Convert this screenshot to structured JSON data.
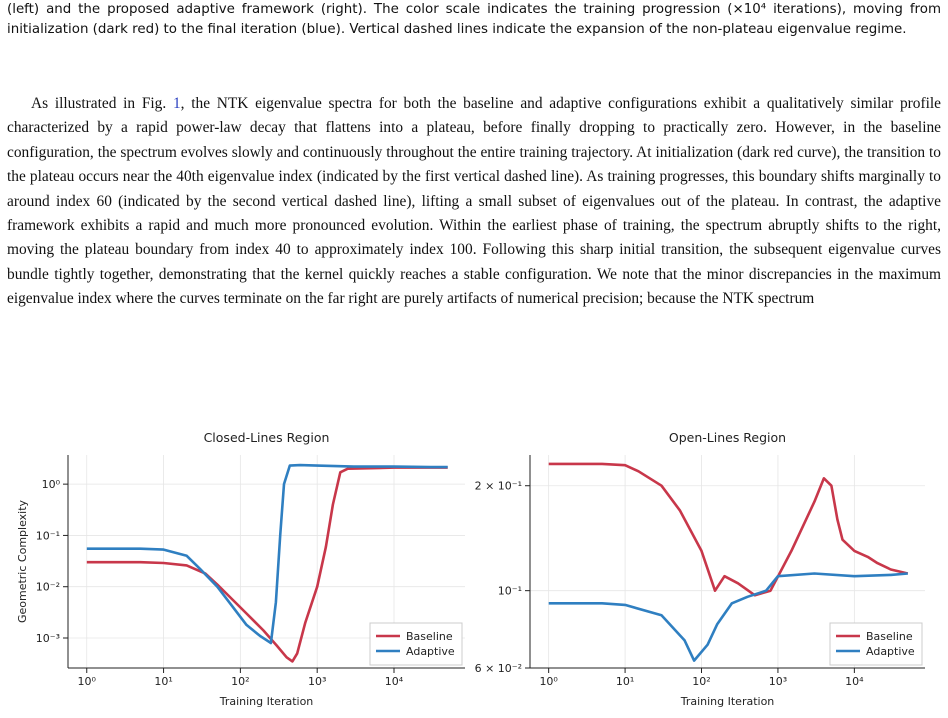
{
  "caption": "(left) and the proposed adaptive framework (right). The color scale indicates the training progression (×10⁴ iterations), moving from initialization (dark red) to the final iteration (blue). Vertical dashed lines indicate the expansion of the non-plateau eigenvalue regime.",
  "paragraph": [
    "As illustrated in Fig. ",
    "1",
    ", the NTK eigenvalue spectra for both the baseline and adaptive configurations exhibit a qualitatively similar profile characterized by a rapid power-law decay that flattens into a plateau, before finally dropping to practically zero. However, in the baseline configuration, the spectrum evolves slowly and continuously throughout the entire training trajectory. At initialization (dark red curve), the transition to the plateau occurs near the 40th eigenvalue index (indicated by the first vertical dashed line). As training progresses, this boundary shifts marginally to around index 60 (indicated by the second vertical dashed line), lifting a small subset of eigenvalues out of the plateau. In contrast, the adaptive framework exhibits a rapid and much more pronounced evolution. Within the earliest phase of training, the spectrum abruptly shifts to the right, moving the plateau boundary from index 40 to approximately index 100. Following this sharp initial transition, the subsequent eigenvalue curves bundle tightly together, demonstrating that the kernel quickly reaches a stable configuration. We note that the minor discrepancies in the maximum eigenvalue index where the curves terminate on the far right are purely artifacts of numerical precision; because the NTK spectrum"
  ],
  "chart_data": [
    {
      "type": "line",
      "title": "Closed-Lines Region",
      "x_label": "Training Iteration",
      "y_label": "Geometric Complexity",
      "xlog": true,
      "ylog": true,
      "xlim": [
        0.57,
        84000
      ],
      "ylim": [
        0.00026,
        3.7
      ],
      "xticks": [
        {
          "value": 1,
          "label": "10⁰"
        },
        {
          "value": 10,
          "label": "10¹"
        },
        {
          "value": 100,
          "label": "10²"
        },
        {
          "value": 1000,
          "label": "10³"
        },
        {
          "value": 10000,
          "label": "10⁴"
        }
      ],
      "yticks": [
        {
          "value": 0.001,
          "label": "10⁻³"
        },
        {
          "value": 0.01,
          "label": "10⁻²"
        },
        {
          "value": 0.1,
          "label": "10⁻¹"
        },
        {
          "value": 1,
          "label": "10⁰"
        }
      ],
      "grid": true,
      "legend": "lower right",
      "series": [
        {
          "name": "Baseline",
          "color": "#c8374a",
          "x": [
            1,
            5,
            10,
            20,
            35,
            50,
            80,
            120,
            200,
            300,
            400,
            475,
            550,
            700,
            1000,
            1300,
            1600,
            2000,
            2500,
            5000,
            10000,
            20000,
            50000
          ],
          "values": [
            0.03,
            0.03,
            0.029,
            0.026,
            0.018,
            0.011,
            0.0055,
            0.003,
            0.0014,
            0.0007,
            0.00042,
            0.00035,
            0.0005,
            0.002,
            0.01,
            0.06,
            0.4,
            1.7,
            2.0,
            2.05,
            2.1,
            2.1,
            2.1
          ]
        },
        {
          "name": "Adaptive",
          "color": "#2f7fc1",
          "x": [
            1,
            5,
            10,
            20,
            30,
            50,
            80,
            120,
            180,
            250,
            290,
            330,
            370,
            440,
            600,
            1000,
            3000,
            10000,
            30000,
            50000
          ],
          "values": [
            0.055,
            0.055,
            0.053,
            0.04,
            0.022,
            0.01,
            0.004,
            0.0018,
            0.0011,
            0.0008,
            0.005,
            0.1,
            1.0,
            2.3,
            2.35,
            2.3,
            2.2,
            2.2,
            2.15,
            2.15
          ]
        }
      ]
    },
    {
      "type": "line",
      "title": "Open-Lines Region",
      "x_label": "Training Iteration",
      "xlog": true,
      "ylog": true,
      "xlim": [
        0.57,
        84000
      ],
      "ylim": [
        0.06,
        0.245
      ],
      "xticks": [
        {
          "value": 1,
          "label": "10⁰"
        },
        {
          "value": 10,
          "label": "10¹"
        },
        {
          "value": 100,
          "label": "10²"
        },
        {
          "value": 1000,
          "label": "10³"
        },
        {
          "value": 10000,
          "label": "10⁴"
        }
      ],
      "yticks": [
        {
          "value": 0.06,
          "label": "6 × 10⁻²"
        },
        {
          "value": 0.1,
          "label": "10⁻¹"
        },
        {
          "value": 0.2,
          "label": "2 × 10⁻¹"
        }
      ],
      "grid": true,
      "legend": "lower right",
      "series": [
        {
          "name": "Baseline",
          "color": "#c8374a",
          "x": [
            1,
            5,
            10,
            15,
            30,
            52,
            100,
            150,
            200,
            300,
            500,
            800,
            1500,
            3000,
            4000,
            5000,
            6000,
            7000,
            10000,
            15000,
            20000,
            30000,
            50000
          ],
          "values": [
            0.231,
            0.231,
            0.229,
            0.22,
            0.2,
            0.17,
            0.13,
            0.1,
            0.11,
            0.105,
            0.097,
            0.1,
            0.13,
            0.18,
            0.21,
            0.2,
            0.16,
            0.14,
            0.13,
            0.125,
            0.12,
            0.115,
            0.112
          ]
        },
        {
          "name": "Adaptive",
          "color": "#2f7fc1",
          "x": [
            1,
            5,
            10,
            30,
            60,
            80,
            120,
            160,
            250,
            400,
            700,
            1000,
            3000,
            10000,
            30000,
            50000
          ],
          "values": [
            0.092,
            0.092,
            0.091,
            0.085,
            0.072,
            0.063,
            0.07,
            0.08,
            0.092,
            0.096,
            0.1,
            0.11,
            0.112,
            0.11,
            0.111,
            0.112
          ]
        }
      ]
    }
  ]
}
